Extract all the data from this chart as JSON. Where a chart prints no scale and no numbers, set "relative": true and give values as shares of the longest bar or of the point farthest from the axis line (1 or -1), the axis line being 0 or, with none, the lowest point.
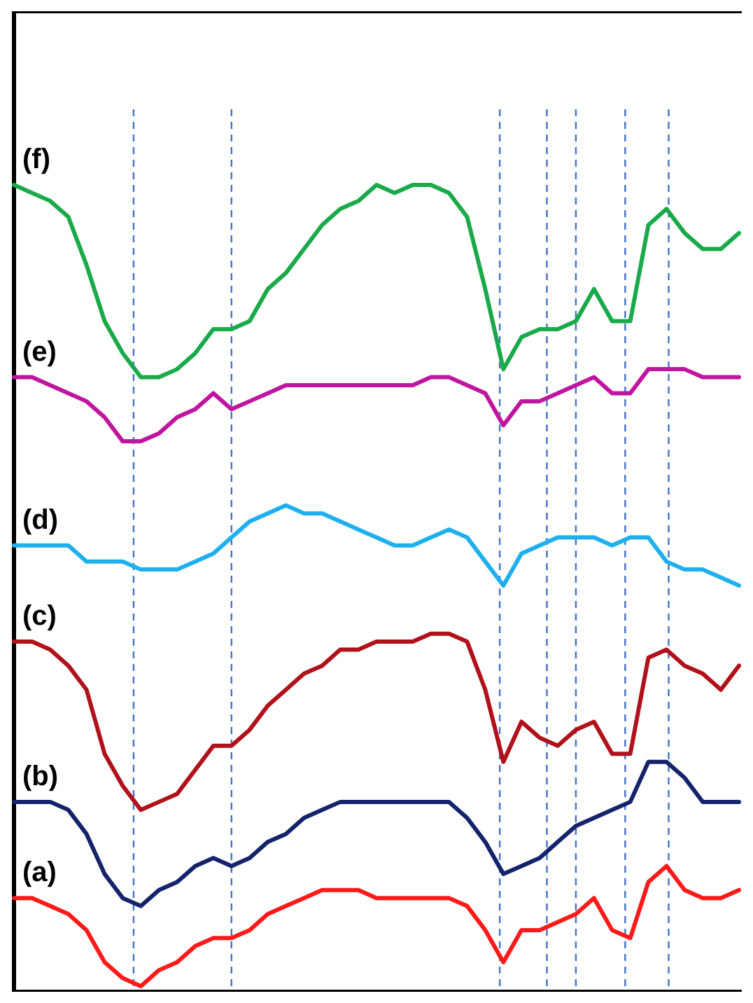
{
  "chart_data": {
    "type": "line",
    "relative": true,
    "line_style": "solid",
    "categories": [
      null,
      null,
      null,
      null,
      null,
      null,
      null,
      null,
      null,
      null,
      null,
      null,
      null,
      null,
      null,
      null,
      null,
      null,
      null,
      null,
      null,
      null,
      null,
      null,
      null,
      null,
      null,
      null,
      null,
      null,
      null,
      null,
      null,
      null,
      null,
      null,
      null,
      null,
      null,
      null,
      null
    ],
    "grid": "x",
    "series": [
      {
        "name": "(f)",
        "color": "#1aaa4a",
        "values": [
          1.0,
          0.99,
          0.98,
          0.96,
          0.9,
          0.83,
          0.79,
          0.76,
          0.76,
          0.77,
          0.79,
          0.82,
          0.82,
          0.83,
          0.87,
          0.89,
          0.92,
          0.95,
          0.97,
          0.98,
          1.0,
          0.99,
          1.0,
          1.0,
          0.99,
          0.96,
          0.87,
          0.77,
          0.81,
          0.82,
          0.82,
          0.83,
          0.87,
          0.83,
          0.83,
          0.95,
          0.97,
          0.94,
          0.92,
          0.92,
          0.94
        ]
      },
      {
        "name": "(e)",
        "color": "#c0169f",
        "values": [
          0.76,
          0.76,
          0.75,
          0.74,
          0.73,
          0.71,
          0.68,
          0.68,
          0.69,
          0.71,
          0.72,
          0.74,
          0.72,
          0.73,
          0.74,
          0.75,
          0.75,
          0.75,
          0.75,
          0.75,
          0.75,
          0.75,
          0.75,
          0.76,
          0.76,
          0.75,
          0.74,
          0.7,
          0.73,
          0.73,
          0.74,
          0.75,
          0.76,
          0.74,
          0.74,
          0.77,
          0.77,
          0.77,
          0.76,
          0.76,
          0.76
        ]
      },
      {
        "name": "(d)",
        "color": "#1eb0ee",
        "values": [
          0.55,
          0.55,
          0.55,
          0.55,
          0.53,
          0.53,
          0.53,
          0.52,
          0.52,
          0.52,
          0.53,
          0.54,
          0.56,
          0.58,
          0.59,
          0.6,
          0.59,
          0.59,
          0.58,
          0.57,
          0.56,
          0.55,
          0.55,
          0.56,
          0.57,
          0.56,
          0.53,
          0.5,
          0.54,
          0.55,
          0.56,
          0.56,
          0.56,
          0.55,
          0.56,
          0.56,
          0.53,
          0.52,
          0.52,
          0.51,
          0.5
        ]
      },
      {
        "name": "(c)",
        "color": "#b0111a",
        "values": [
          0.43,
          0.43,
          0.42,
          0.4,
          0.37,
          0.29,
          0.25,
          0.22,
          0.23,
          0.24,
          0.27,
          0.3,
          0.3,
          0.32,
          0.35,
          0.37,
          0.39,
          0.4,
          0.42,
          0.42,
          0.43,
          0.43,
          0.43,
          0.44,
          0.44,
          0.43,
          0.37,
          0.28,
          0.33,
          0.31,
          0.3,
          0.32,
          0.33,
          0.29,
          0.29,
          0.41,
          0.42,
          0.4,
          0.39,
          0.37,
          0.4
        ]
      },
      {
        "name": "(b)",
        "color": "#14236b",
        "values": [
          0.23,
          0.23,
          0.23,
          0.22,
          0.19,
          0.14,
          0.11,
          0.1,
          0.12,
          0.13,
          0.15,
          0.16,
          0.15,
          0.16,
          0.18,
          0.19,
          0.21,
          0.22,
          0.23,
          0.23,
          0.23,
          0.23,
          0.23,
          0.23,
          0.23,
          0.21,
          0.18,
          0.14,
          0.15,
          0.16,
          0.18,
          0.2,
          0.21,
          0.22,
          0.23,
          0.28,
          0.28,
          0.26,
          0.23,
          0.23,
          0.23
        ]
      },
      {
        "name": "(a)",
        "color": "#ff1a1a",
        "values": [
          0.11,
          0.11,
          0.1,
          0.09,
          0.07,
          0.03,
          0.01,
          0,
          0.02,
          0.03,
          0.05,
          0.06,
          0.06,
          0.07,
          0.09,
          0.1,
          0.11,
          0.12,
          0.12,
          0.12,
          0.11,
          0.11,
          0.11,
          0.11,
          0.11,
          0.1,
          0.07,
          0.03,
          0.07,
          0.07,
          0.08,
          0.09,
          0.11,
          0.07,
          0.06,
          0.13,
          0.15,
          0.12,
          0.11,
          0.11,
          0.12
        ]
      }
    ]
  }
}
